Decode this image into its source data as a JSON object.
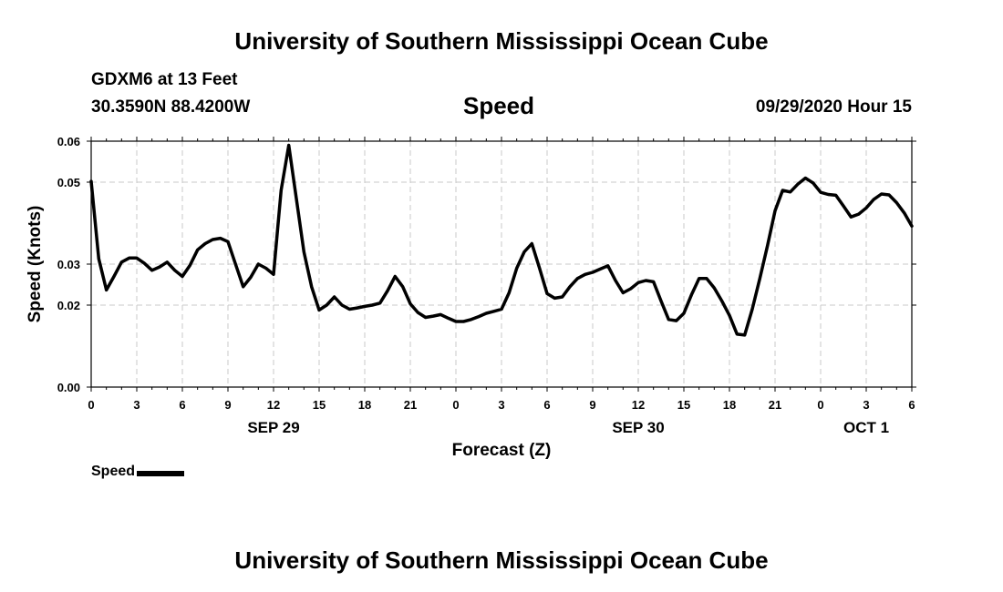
{
  "header": {
    "title": "University of Southern Mississippi Ocean Cube",
    "station": "GDXM6 at 13 Feet",
    "coordinates": "30.3590N 88.4200W",
    "variable": "Speed",
    "datetime": "09/29/2020 Hour 15",
    "footer_title": "University of Southern Mississippi Ocean Cube"
  },
  "legend": {
    "label": "Speed",
    "color": "#000000"
  },
  "chart_data": {
    "type": "line",
    "title": "Speed",
    "xlabel": "Forecast (Z)",
    "ylabel": "Speed (Knots)",
    "xlim": [
      0,
      54
    ],
    "ylim": [
      0,
      0.06
    ],
    "grid": true,
    "x_ticks": [
      {
        "pos": 0,
        "label": "0"
      },
      {
        "pos": 3,
        "label": "3"
      },
      {
        "pos": 6,
        "label": "6"
      },
      {
        "pos": 9,
        "label": "9"
      },
      {
        "pos": 12,
        "label": "12"
      },
      {
        "pos": 15,
        "label": "15"
      },
      {
        "pos": 18,
        "label": "18"
      },
      {
        "pos": 21,
        "label": "21"
      },
      {
        "pos": 24,
        "label": "0"
      },
      {
        "pos": 27,
        "label": "3"
      },
      {
        "pos": 30,
        "label": "6"
      },
      {
        "pos": 33,
        "label": "9"
      },
      {
        "pos": 36,
        "label": "12"
      },
      {
        "pos": 39,
        "label": "15"
      },
      {
        "pos": 42,
        "label": "18"
      },
      {
        "pos": 45,
        "label": "21"
      },
      {
        "pos": 48,
        "label": "0"
      },
      {
        "pos": 51,
        "label": "3"
      },
      {
        "pos": 54,
        "label": "6"
      }
    ],
    "y_ticks": [
      {
        "value": 0.0,
        "label": "0.00"
      },
      {
        "value": 0.02,
        "label": "0.02"
      },
      {
        "value": 0.03,
        "label": "0.03"
      },
      {
        "value": 0.05,
        "label": "0.05"
      },
      {
        "value": 0.06,
        "label": "0.06"
      }
    ],
    "date_labels": [
      {
        "pos": 12,
        "label": "SEP 29"
      },
      {
        "pos": 36,
        "label": "SEP 30"
      },
      {
        "pos": 51,
        "label": "OCT 1"
      }
    ],
    "series": [
      {
        "name": "Speed",
        "color": "#000000",
        "x": [
          0,
          0.5,
          1,
          1.5,
          2,
          2.5,
          3,
          3.5,
          4,
          4.5,
          5,
          5.5,
          6,
          6.5,
          7,
          7.5,
          8,
          8.5,
          9,
          9.5,
          10,
          10.5,
          11,
          11.5,
          12,
          12.5,
          13,
          13.5,
          14,
          14.5,
          15,
          15.5,
          16,
          16.5,
          17,
          17.5,
          18,
          18.5,
          19,
          19.5,
          20,
          20.5,
          21,
          21.5,
          22,
          22.5,
          23,
          23.5,
          24,
          24.5,
          25,
          25.5,
          26,
          26.5,
          27,
          27.5,
          28,
          28.5,
          29,
          29.5,
          30,
          30.5,
          31,
          31.5,
          32,
          32.5,
          33,
          33.5,
          34,
          34.5,
          35,
          35.5,
          36,
          36.5,
          37,
          37.5,
          38,
          38.5,
          39,
          39.5,
          40,
          40.5,
          41,
          41.5,
          42,
          42.5,
          43,
          43.5,
          44,
          44.5,
          45,
          45.5,
          46,
          46.5,
          47,
          47.5,
          48,
          48.5,
          49,
          49.5,
          50,
          50.5,
          51,
          51.5,
          52,
          52.5,
          53,
          53.5,
          54
        ],
        "values": [
          0.0502,
          0.0313,
          0.0237,
          0.027,
          0.0305,
          0.0315,
          0.0315,
          0.0302,
          0.0285,
          0.0293,
          0.0305,
          0.0285,
          0.027,
          0.0297,
          0.0335,
          0.035,
          0.036,
          0.0363,
          0.0355,
          0.03,
          0.0245,
          0.0268,
          0.03,
          0.029,
          0.0275,
          0.048,
          0.059,
          0.046,
          0.033,
          0.0245,
          0.0188,
          0.02,
          0.022,
          0.02,
          0.019,
          0.0193,
          0.0197,
          0.02,
          0.0205,
          0.0235,
          0.027,
          0.0245,
          0.0203,
          0.0182,
          0.017,
          0.0173,
          0.0177,
          0.0168,
          0.016,
          0.016,
          0.0165,
          0.0172,
          0.018,
          0.0185,
          0.019,
          0.023,
          0.029,
          0.033,
          0.035,
          0.029,
          0.0228,
          0.0217,
          0.022,
          0.0245,
          0.0265,
          0.0275,
          0.028,
          0.0288,
          0.0296,
          0.026,
          0.023,
          0.024,
          0.0255,
          0.026,
          0.0257,
          0.021,
          0.0165,
          0.0162,
          0.018,
          0.0225,
          0.0265,
          0.0265,
          0.0242,
          0.021,
          0.0175,
          0.0129,
          0.0127,
          0.019,
          0.0265,
          0.0345,
          0.043,
          0.048,
          0.0476,
          0.0495,
          0.051,
          0.0498,
          0.0475,
          0.047,
          0.0468,
          0.0442,
          0.0415,
          0.0422,
          0.0437,
          0.0458,
          0.0471,
          0.0469,
          0.045,
          0.0425,
          0.0393
        ]
      }
    ]
  }
}
